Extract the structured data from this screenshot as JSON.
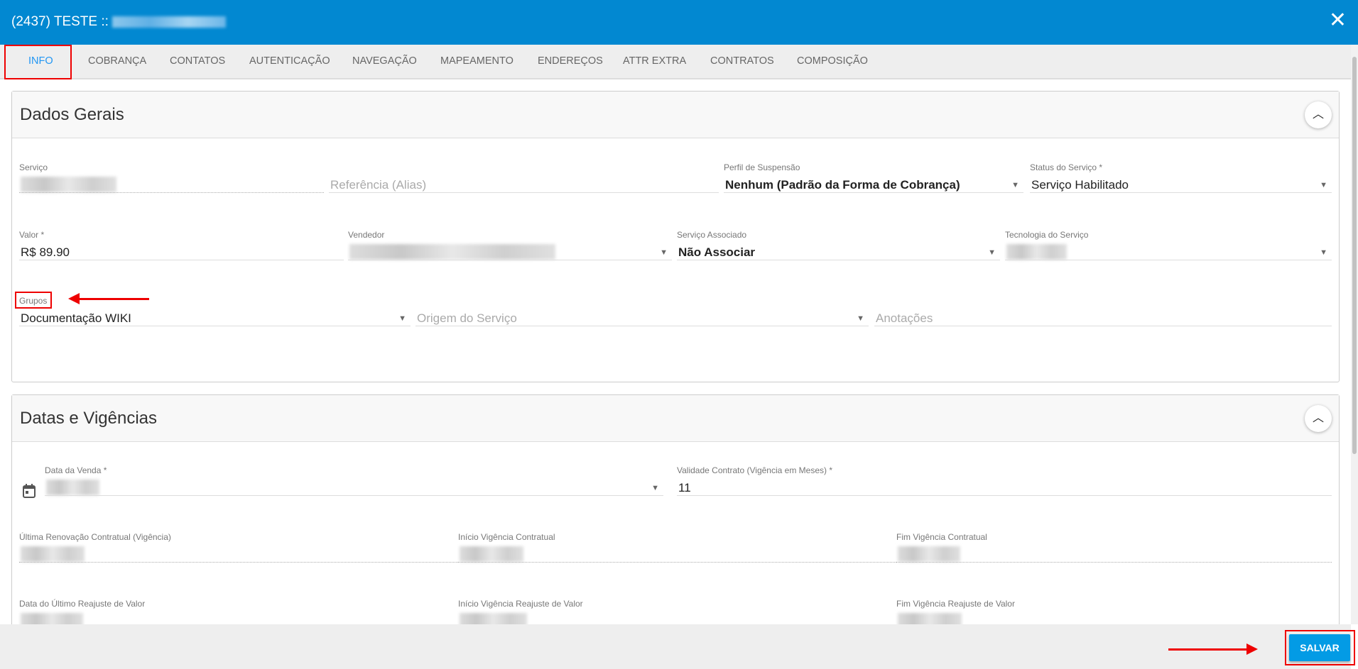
{
  "window": {
    "title": "(2437) TESTE ::",
    "close_icon": "close-icon"
  },
  "tabs": [
    {
      "label": "INFO",
      "active": true
    },
    {
      "label": "COBRANÇA"
    },
    {
      "label": "CONTATOS"
    },
    {
      "label": "AUTENTICAÇÃO"
    },
    {
      "label": "NAVEGAÇÃO"
    },
    {
      "label": "MAPEAMENTO"
    },
    {
      "label": "ENDEREÇOS"
    },
    {
      "label": "ATTR EXTRA"
    },
    {
      "label": "CONTRATOS"
    },
    {
      "label": "COMPOSIÇÃO"
    }
  ],
  "dados_gerais": {
    "title": "Dados Gerais",
    "servico": {
      "label": "Serviço"
    },
    "referencia": {
      "placeholder": "Referência (Alias)"
    },
    "perfil": {
      "label": "Perfil de Suspensão",
      "value": "Nenhum (Padrão da Forma de Cobrança)"
    },
    "status": {
      "label": "Status do Serviço *",
      "value": "Serviço Habilitado"
    },
    "valor": {
      "label": "Valor *",
      "value": "R$ 89.90"
    },
    "vendedor": {
      "label": "Vendedor"
    },
    "servico_associado": {
      "label": "Serviço Associado",
      "value": "Não Associar"
    },
    "tecnologia": {
      "label": "Tecnologia do Serviço"
    },
    "grupos": {
      "label": "Grupos",
      "value": "Documentação WIKI"
    },
    "origem": {
      "placeholder": "Origem do Serviço"
    },
    "anotacoes": {
      "placeholder": "Anotações"
    }
  },
  "datas": {
    "title": "Datas e Vigências",
    "data_venda": {
      "label": "Data da Venda *"
    },
    "validade": {
      "label": "Validade Contrato (Vigência em Meses) *",
      "value": "11"
    },
    "ultima_renovacao": {
      "label": "Última Renovação Contratual (Vigência)"
    },
    "inicio_vigencia": {
      "label": "Início Vigência Contratual"
    },
    "fim_vigencia": {
      "label": "Fim Vigência Contratual"
    },
    "data_ultimo_reajuste": {
      "label": "Data do Último Reajuste de Valor"
    },
    "inicio_reajuste": {
      "label": "Início Vigência Reajuste de Valor"
    },
    "fim_reajuste": {
      "label": "Fim Vigência Reajuste de Valor"
    }
  },
  "footer": {
    "save_label": "SALVAR"
  },
  "colors": {
    "header": "#0288d1",
    "accent": "#2196f3",
    "save": "#039be5",
    "annotation": "#ee0000"
  }
}
